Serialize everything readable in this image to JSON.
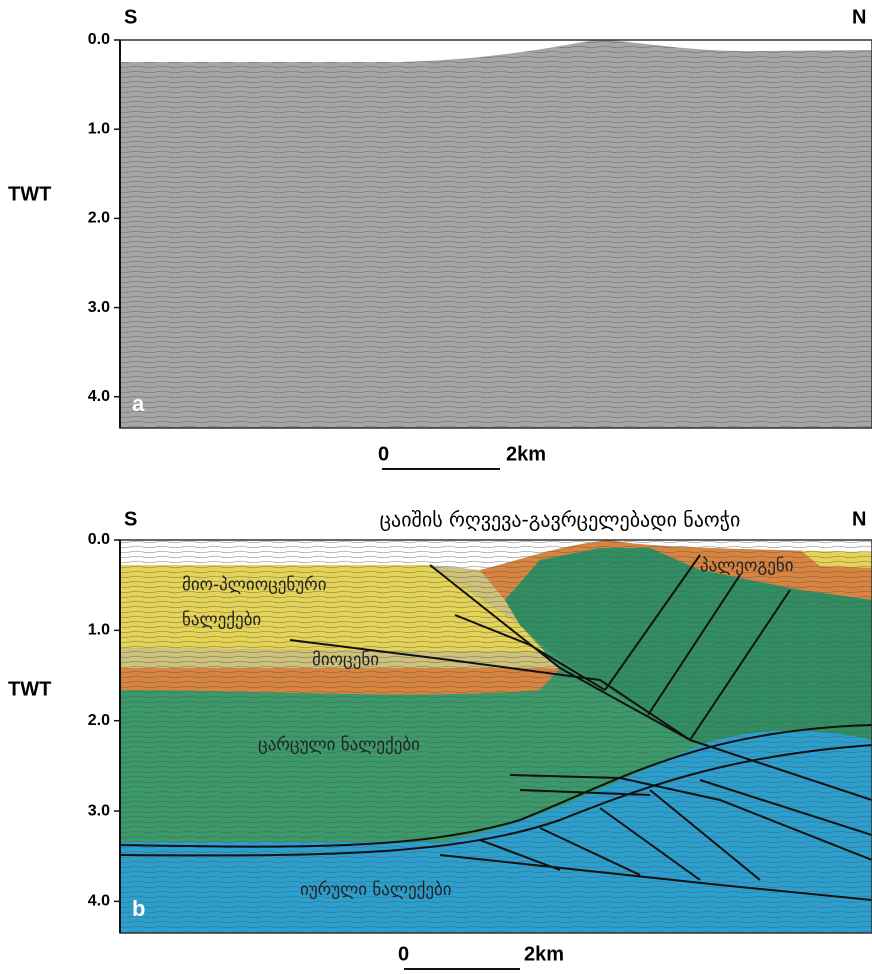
{
  "panels": [
    {
      "tag": "a",
      "south": "S",
      "north": "N",
      "axis_title": "TWT",
      "ylim": [
        0,
        4.35
      ],
      "yticks": [
        {
          "value": 0,
          "label": "0.0"
        },
        {
          "value": 1,
          "label": "1.0"
        },
        {
          "value": 2,
          "label": "2.0"
        },
        {
          "value": 3,
          "label": "3.0"
        },
        {
          "value": 4,
          "label": "4.0"
        }
      ],
      "scale": [
        "0",
        "2km"
      ]
    },
    {
      "tag": "b",
      "south": "S",
      "north": "N",
      "axis_title": "TWT",
      "title": "ცაიშის რღვევა-გავრცელებადი ნაოჭი",
      "ylim": [
        0,
        4.35
      ],
      "yticks": [
        {
          "value": 0,
          "label": "0.0"
        },
        {
          "value": 1,
          "label": "1.0"
        },
        {
          "value": 2,
          "label": "2.0"
        },
        {
          "value": 3,
          "label": "3.0"
        },
        {
          "value": 4,
          "label": "4.0"
        }
      ],
      "units": [
        {
          "lines": [
            "მიო-პლიოცენური",
            "ნალექები"
          ]
        },
        {
          "lines": [
            "მიოცენი"
          ]
        },
        {
          "lines": [
            "პალეოგენი"
          ]
        },
        {
          "lines": [
            "ცარცული ნალექები"
          ]
        },
        {
          "lines": [
            "იურული ნალექები"
          ]
        }
      ],
      "scale": [
        "0",
        "2km"
      ]
    }
  ]
}
